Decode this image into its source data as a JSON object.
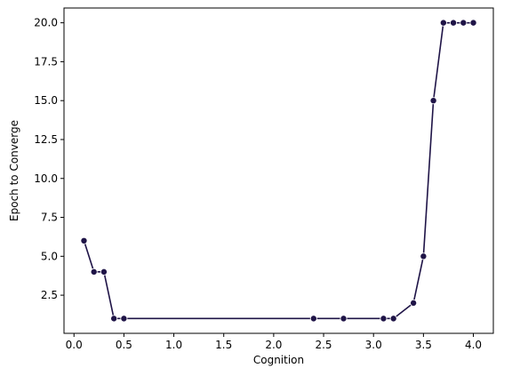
{
  "chart_data": {
    "type": "line",
    "title": "",
    "xlabel": "Cognition",
    "ylabel": "Epoch to Converge",
    "xlim": [
      -0.1,
      4.2
    ],
    "ylim": [
      0.05,
      20.95
    ],
    "xticks": [
      0.0,
      0.5,
      1.0,
      1.5,
      2.0,
      2.5,
      3.0,
      3.5,
      4.0
    ],
    "xtick_labels": [
      "0.0",
      "0.5",
      "1.0",
      "1.5",
      "2.0",
      "2.5",
      "3.0",
      "3.5",
      "4.0"
    ],
    "yticks": [
      2.5,
      5.0,
      7.5,
      10.0,
      12.5,
      15.0,
      17.5,
      20.0
    ],
    "ytick_labels": [
      "2.5",
      "5.0",
      "7.5",
      "10.0",
      "12.5",
      "15.0",
      "17.5",
      "20.0"
    ],
    "grid": false,
    "legend": "none",
    "series": [
      {
        "color": "#1f1447",
        "marker": "circle",
        "x": [
          0.1,
          0.2,
          0.3,
          0.4,
          0.5,
          2.4,
          2.7,
          3.1,
          3.2,
          3.4,
          3.5,
          3.6,
          3.7,
          3.8,
          3.9,
          4.0
        ],
        "y": [
          6,
          4,
          4,
          1,
          1,
          1,
          1,
          1,
          1,
          2,
          5,
          15,
          20,
          20,
          20,
          20
        ]
      }
    ]
  }
}
